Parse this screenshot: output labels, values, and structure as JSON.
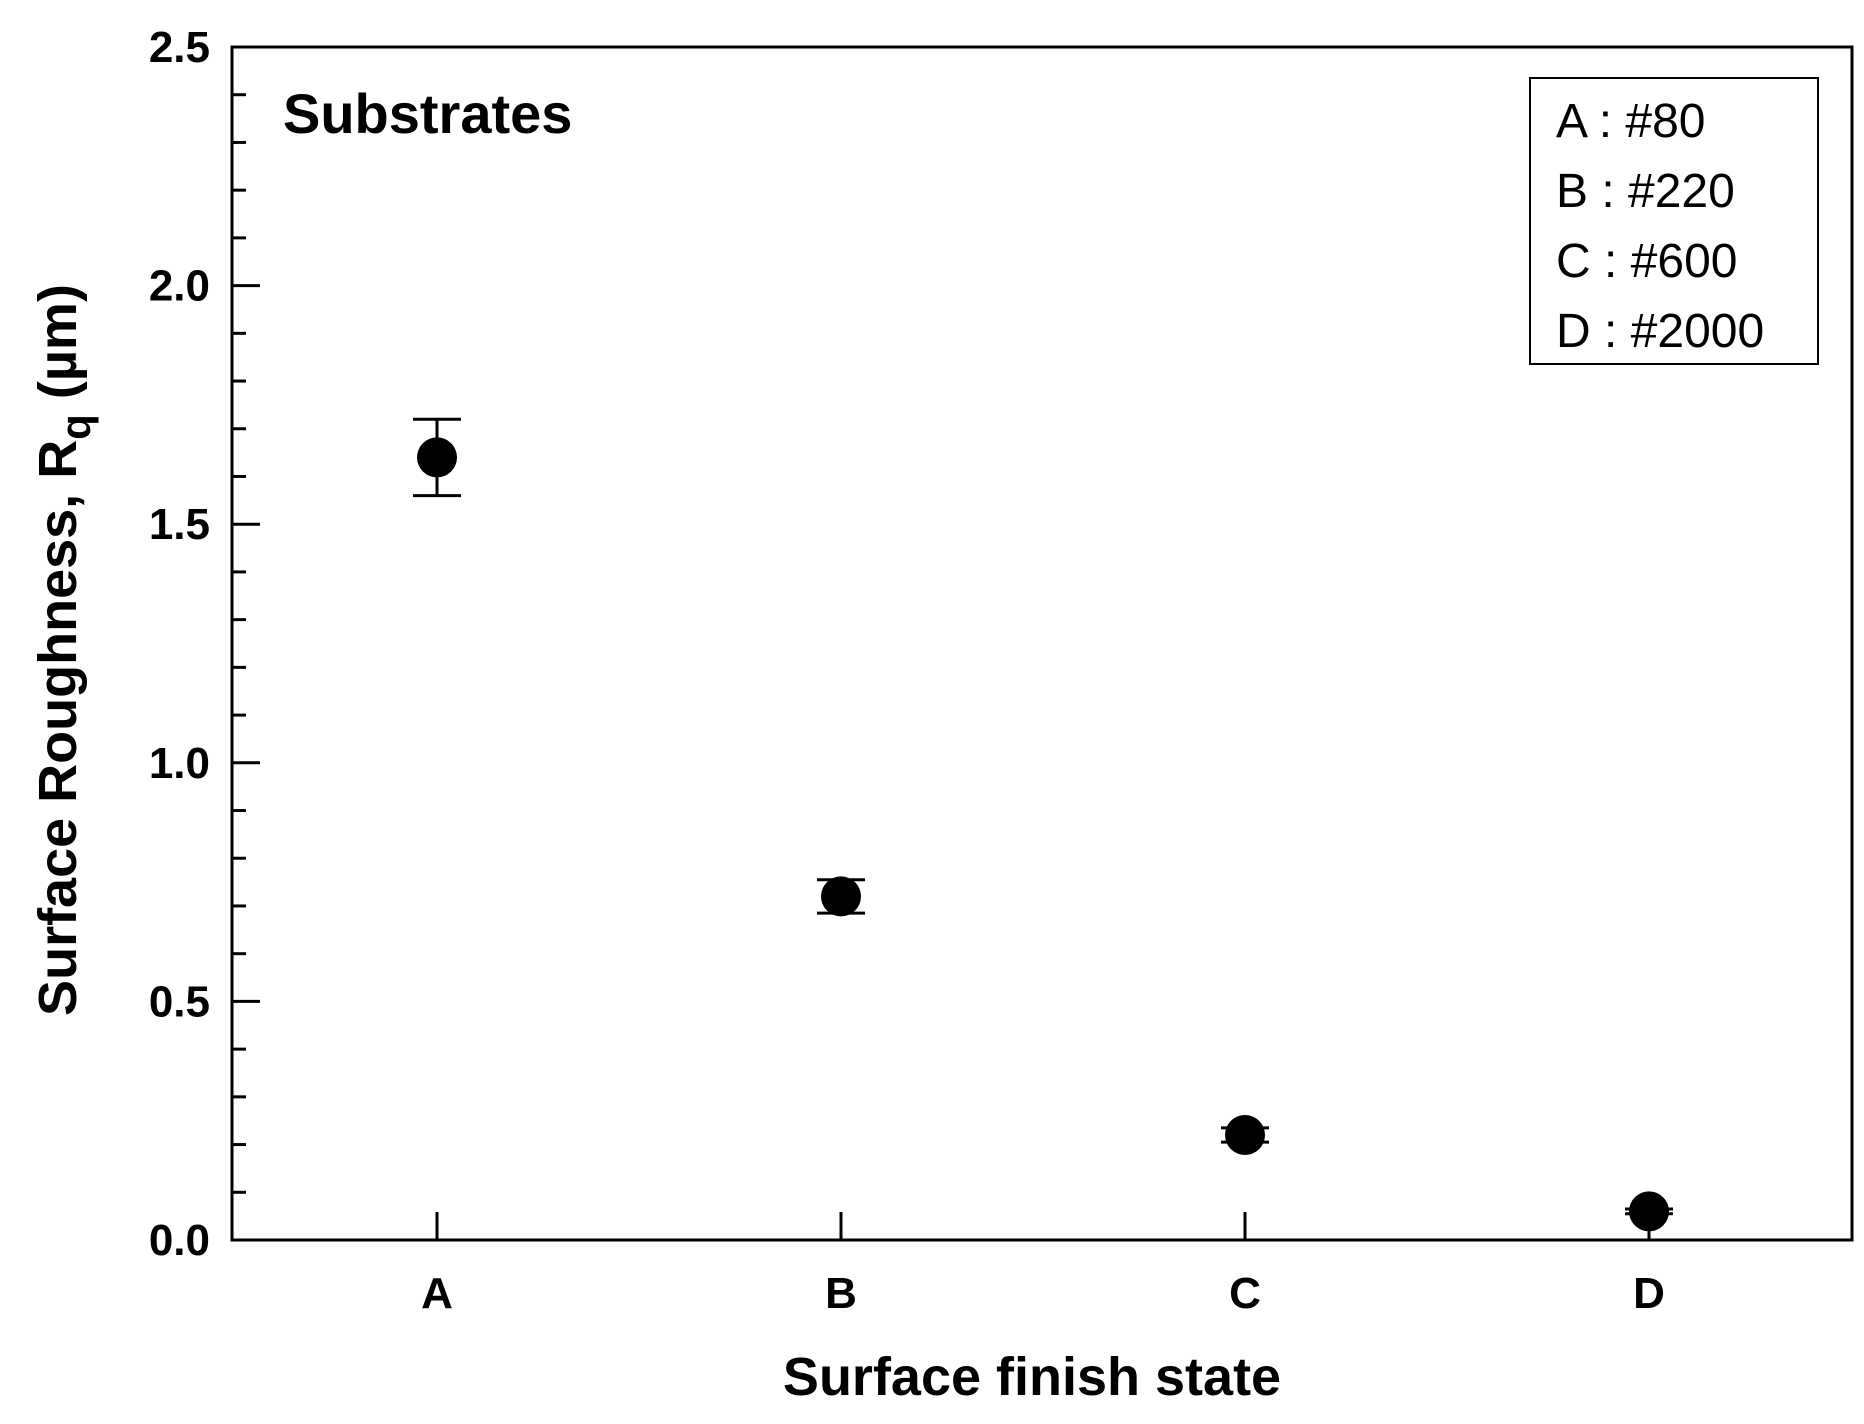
{
  "chart_data": {
    "type": "scatter",
    "title": "",
    "annotation": "Substrates",
    "xlabel": "Surface finish state",
    "ylabel_main": "Surface Roughness, R",
    "ylabel_sub": "q",
    "ylabel_unit": " (µm)",
    "categories": [
      "A",
      "B",
      "C",
      "D"
    ],
    "series": [
      {
        "values": [
          1.64,
          0.72,
          0.22,
          0.06
        ],
        "error_low": [
          1.56,
          0.685,
          0.205,
          0.055
        ],
        "error_high": [
          1.72,
          0.755,
          0.235,
          0.065
        ]
      }
    ],
    "ylim": [
      0,
      2.5
    ],
    "yticks": [
      "0.0",
      "0.5",
      "1.0",
      "1.5",
      "2.0",
      "2.5"
    ],
    "ytick_values": [
      0,
      0.5,
      1.0,
      1.5,
      2.0,
      2.5
    ],
    "yminor_step": 0.1,
    "legend": {
      "placement": "top-right",
      "entries": [
        "A : #80",
        "B : #220",
        "C : #600",
        "D : #2000"
      ]
    },
    "grid": false,
    "marker_color": "#000000"
  }
}
